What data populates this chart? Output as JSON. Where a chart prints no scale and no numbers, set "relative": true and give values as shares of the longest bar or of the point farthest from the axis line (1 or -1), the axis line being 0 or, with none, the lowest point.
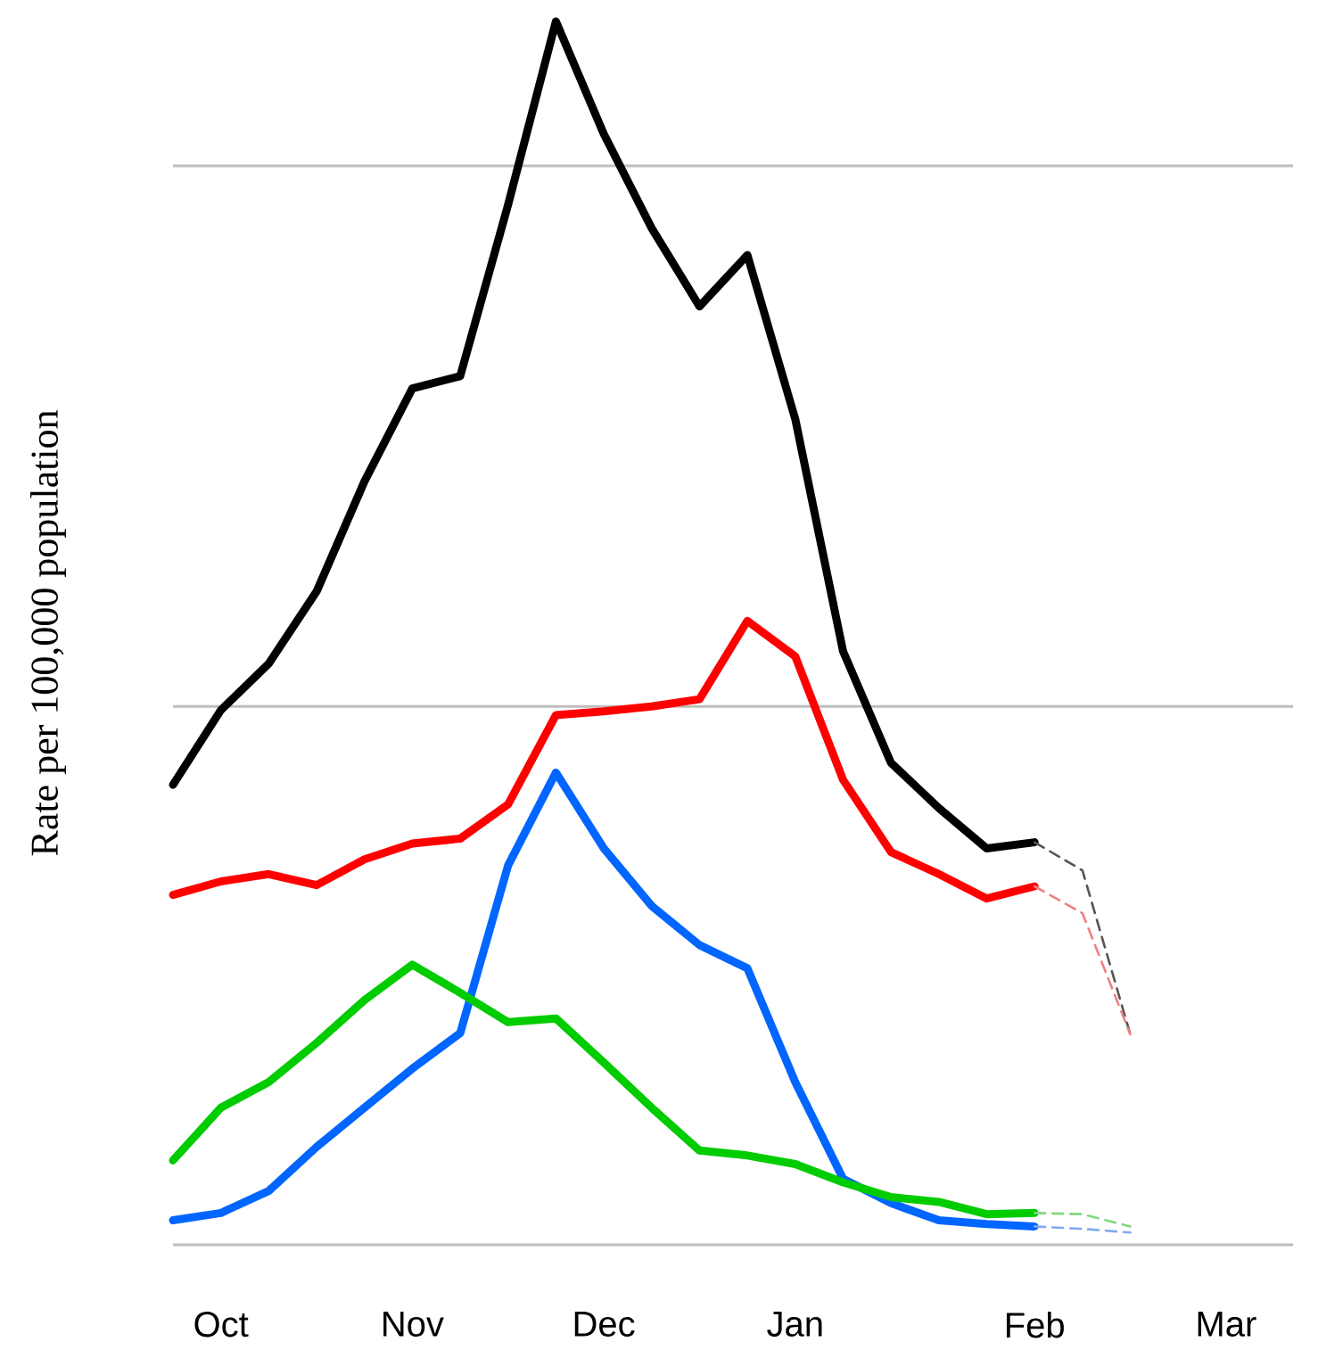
{
  "chart_data": {
    "type": "line",
    "relative": true,
    "ylabel": "Rate per 100,000 population",
    "categories": [
      null,
      "Oct",
      null,
      null,
      null,
      "Nov",
      null,
      null,
      null,
      "Dec",
      null,
      null,
      null,
      "Jan",
      null,
      null,
      null,
      null,
      "Feb",
      null,
      null,
      null,
      "Mar",
      null
    ],
    "ref_lines": [
      {
        "axis": "y",
        "value": 0,
        "color": "#bebebe"
      },
      {
        "axis": "y",
        "value": 0.44,
        "color": "#bebebe"
      },
      {
        "axis": "y",
        "value": 0.882,
        "color": "#bebebe"
      }
    ],
    "tick_labels": "x",
    "marker": "none",
    "series": [
      {
        "color": "#000000",
        "line_style": "solid",
        "values": [
          0.376,
          0.437,
          0.475,
          0.534,
          0.624,
          0.7,
          0.71,
          0.85,
          1,
          0.908,
          0.831,
          0.767,
          0.809,
          0.675,
          0.485,
          0.394,
          0.357,
          0.324,
          0.329,
          null,
          null,
          null,
          null,
          null
        ]
      },
      {
        "color": "#ff0000",
        "line_style": "solid",
        "values": [
          0.286,
          0.297,
          0.303,
          0.294,
          0.315,
          0.328,
          0.332,
          0.36,
          0.433,
          0.436,
          0.44,
          0.446,
          0.51,
          0.481,
          0.38,
          0.321,
          0.303,
          0.283,
          0.293,
          null,
          null,
          null,
          null,
          null
        ]
      },
      {
        "color": "#0066ff",
        "line_style": "solid",
        "values": [
          0.02,
          0.026,
          0.044,
          0.08,
          0.112,
          0.144,
          0.173,
          0.31,
          0.386,
          0.324,
          0.277,
          0.245,
          0.226,
          0.133,
          0.054,
          0.034,
          0.02,
          0.017,
          0.015,
          null,
          null,
          null,
          null,
          null
        ]
      },
      {
        "color": "#00cc00",
        "line_style": "solid",
        "values": [
          0.069,
          0.112,
          0.133,
          0.165,
          0.2,
          0.229,
          0.206,
          0.182,
          0.185,
          0.149,
          0.112,
          0.077,
          0.073,
          0.066,
          0.051,
          0.039,
          0.035,
          0.025,
          0.026,
          null,
          null,
          null,
          null,
          null
        ]
      },
      {
        "color": "#555555",
        "line_style": "dashed",
        "values": [
          null,
          null,
          null,
          null,
          null,
          null,
          null,
          null,
          null,
          null,
          null,
          null,
          null,
          null,
          null,
          null,
          null,
          null,
          0.329,
          0.306,
          0.172,
          null,
          null,
          null
        ]
      },
      {
        "color": "#f08080",
        "line_style": "dashed",
        "values": [
          null,
          null,
          null,
          null,
          null,
          null,
          null,
          null,
          null,
          null,
          null,
          null,
          null,
          null,
          null,
          null,
          null,
          null,
          0.293,
          0.271,
          0.172,
          null,
          null,
          null
        ]
      },
      {
        "color": "#7fa8f0",
        "line_style": "dashed",
        "values": [
          null,
          null,
          null,
          null,
          null,
          null,
          null,
          null,
          null,
          null,
          null,
          null,
          null,
          null,
          null,
          null,
          null,
          null,
          0.015,
          0.013,
          0.01,
          null,
          null,
          null
        ]
      },
      {
        "color": "#80d880",
        "line_style": "dashed",
        "values": [
          null,
          null,
          null,
          null,
          null,
          null,
          null,
          null,
          null,
          null,
          null,
          null,
          null,
          null,
          null,
          null,
          null,
          null,
          0.026,
          0.025,
          0.015,
          null,
          null,
          null
        ]
      }
    ]
  }
}
